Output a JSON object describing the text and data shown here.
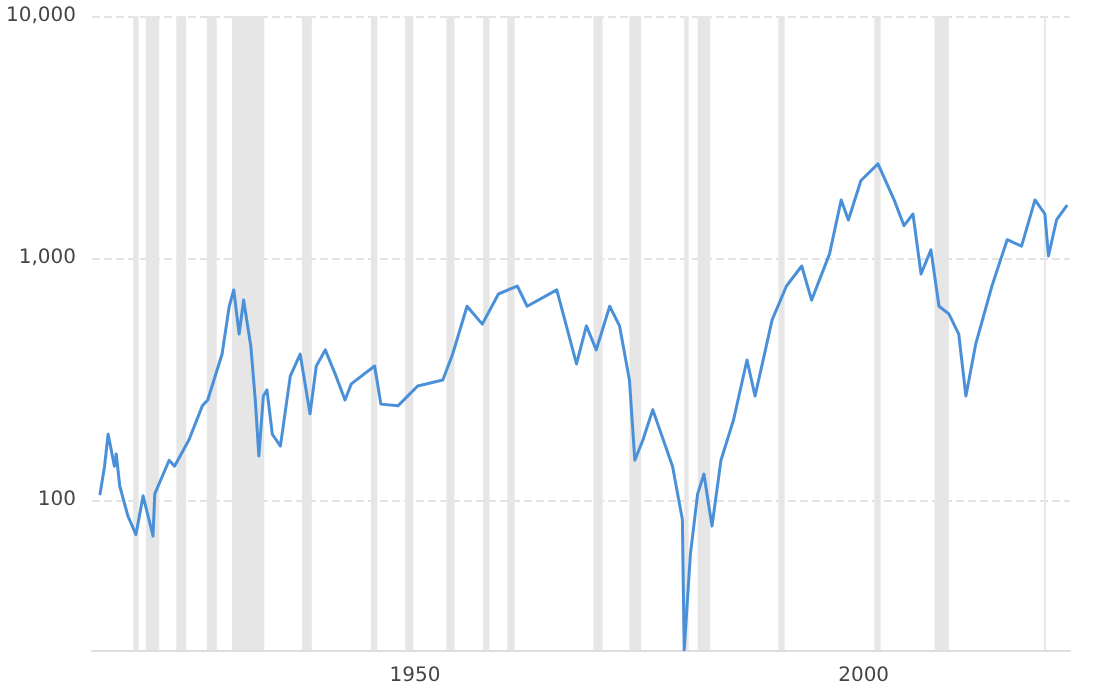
{
  "chart_data": {
    "type": "line",
    "log": "y",
    "grid": "y",
    "marker": "none",
    "line_style": "solid",
    "xlim": [
      1914,
      2023
    ],
    "xticks": [
      1950,
      2000
    ],
    "ylim": [
      24,
      10000
    ],
    "yticks": [
      100,
      {
        "value": 1000,
        "label": "1,000"
      },
      {
        "value": 10000,
        "label": "10,000"
      }
    ],
    "series": [
      {
        "color": "#4a90d9",
        "x": [
          1914.9,
          1915.4,
          1915.8,
          1916.5,
          1916.7,
          1917.1,
          1918.0,
          1918.9,
          1919.7,
          1920.8,
          1921.0,
          1922.6,
          1923.2,
          1924.8,
          1926.3,
          1926.9,
          1928.5,
          1929.3,
          1929.8,
          1930.4,
          1930.9,
          1931.7,
          1932.2,
          1932.6,
          1933.1,
          1933.5,
          1934.1,
          1935.0,
          1936.1,
          1937.2,
          1938.3,
          1939.0,
          1940.0,
          1941.1,
          1942.2,
          1942.9,
          1945.5,
          1946.2,
          1948.1,
          1950.3,
          1953.1,
          1954.2,
          1955.8,
          1957.5,
          1959.3,
          1961.4,
          1962.5,
          1965.8,
          1968.0,
          1969.1,
          1970.2,
          1971.7,
          1972.8,
          1973.9,
          1974.5,
          1975.4,
          1976.5,
          1978.7,
          1979.8,
          1980.0,
          1980.7,
          1981.5,
          1982.2,
          1983.1,
          1984.1,
          1985.5,
          1987.0,
          1987.9,
          1989.8,
          1991.4,
          1993.1,
          1994.2,
          1996.2,
          1997.5,
          1998.3,
          1999.7,
          2001.6,
          2003.4,
          2004.5,
          2005.5,
          2006.4,
          2007.5,
          2008.4,
          2009.5,
          2010.6,
          2011.4,
          2012.5,
          2014.3,
          2016.0,
          2017.6,
          2019.1,
          2020.2,
          2020.6,
          2021.5,
          2022.6
        ],
        "values": [
          106,
          138,
          187,
          138,
          155,
          114,
          86,
          72,
          104,
          71,
          106,
          146,
          138,
          177,
          245,
          259,
          401,
          632,
          738,
          485,
          670,
          433,
          259,
          152,
          269,
          285,
          187,
          167,
          325,
          401,
          227,
          358,
          417,
          332,
          259,
          302,
          358,
          249,
          245,
          296,
          313,
          401,
          632,
          533,
          710,
          766,
          632,
          738,
          365,
          524,
          417,
          632,
          524,
          313,
          146,
          177,
          236,
          138,
          83,
          24,
          60,
          106,
          128,
          78,
          146,
          214,
          379,
          269,
          555,
          766,
          927,
          670,
          1040,
          1738,
          1436,
          2090,
          2450,
          1738,
          1360,
          1520,
          859,
          1080,
          632,
          588,
          485,
          269,
          442,
          766,
          1190,
          1120,
          1738,
          1520,
          1020,
          1436,
          1640
        ]
      }
    ],
    "bands": [
      {
        "axis": "x",
        "from": 1918.6,
        "to": 1919.2,
        "color": "#e6e6e6"
      },
      {
        "axis": "x",
        "from": 1920.0,
        "to": 1921.5,
        "color": "#e6e6e6"
      },
      {
        "axis": "x",
        "from": 1923.4,
        "to": 1924.5,
        "color": "#e6e6e6"
      },
      {
        "axis": "x",
        "from": 1926.8,
        "to": 1927.9,
        "color": "#e6e6e6"
      },
      {
        "axis": "x",
        "from": 1929.6,
        "to": 1933.2,
        "color": "#e6e6e6"
      },
      {
        "axis": "x",
        "from": 1937.4,
        "to": 1938.5,
        "color": "#e6e6e6"
      },
      {
        "axis": "x",
        "from": 1945.1,
        "to": 1945.8,
        "color": "#e6e6e6"
      },
      {
        "axis": "x",
        "from": 1948.9,
        "to": 1949.8,
        "color": "#e6e6e6"
      },
      {
        "axis": "x",
        "from": 1953.5,
        "to": 1954.4,
        "color": "#e6e6e6"
      },
      {
        "axis": "x",
        "from": 1957.6,
        "to": 1958.3,
        "color": "#e6e6e6"
      },
      {
        "axis": "x",
        "from": 1960.3,
        "to": 1961.1,
        "color": "#e6e6e6"
      },
      {
        "axis": "x",
        "from": 1969.9,
        "to": 1970.9,
        "color": "#e6e6e6"
      },
      {
        "axis": "x",
        "from": 1973.9,
        "to": 1975.2,
        "color": "#e6e6e6"
      },
      {
        "axis": "x",
        "from": 1980.0,
        "to": 1980.5,
        "color": "#e6e6e6"
      },
      {
        "axis": "x",
        "from": 1981.5,
        "to": 1982.9,
        "color": "#e6e6e6"
      },
      {
        "axis": "x",
        "from": 1990.5,
        "to": 1991.2,
        "color": "#e6e6e6"
      },
      {
        "axis": "x",
        "from": 2001.2,
        "to": 2001.9,
        "color": "#e6e6e6"
      },
      {
        "axis": "x",
        "from": 2007.9,
        "to": 2009.5,
        "color": "#e6e6e6"
      },
      {
        "axis": "x",
        "from": 2020.1,
        "to": 2020.3,
        "color": "#e6e6e6"
      }
    ]
  }
}
